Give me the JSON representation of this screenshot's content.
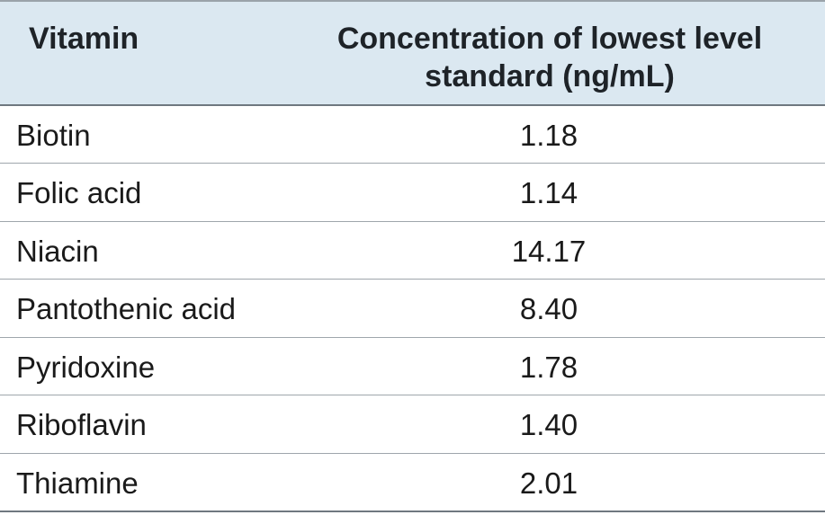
{
  "table": {
    "headers": {
      "vitamin": "Vitamin",
      "concentration": "Concentration of lowest level standard (ng/mL)"
    },
    "rows": [
      {
        "vitamin": "Biotin",
        "concentration": "1.18"
      },
      {
        "vitamin": "Folic acid",
        "concentration": "1.14"
      },
      {
        "vitamin": "Niacin",
        "concentration": "14.17"
      },
      {
        "vitamin": "Pantothenic acid",
        "concentration": "8.40"
      },
      {
        "vitamin": "Pyridoxine",
        "concentration": "1.78"
      },
      {
        "vitamin": "Riboflavin",
        "concentration": "1.40"
      },
      {
        "vitamin": "Thiamine",
        "concentration": "2.01"
      }
    ]
  },
  "colors": {
    "header_background": "#dbe8f1",
    "rule": "#6f7880"
  }
}
